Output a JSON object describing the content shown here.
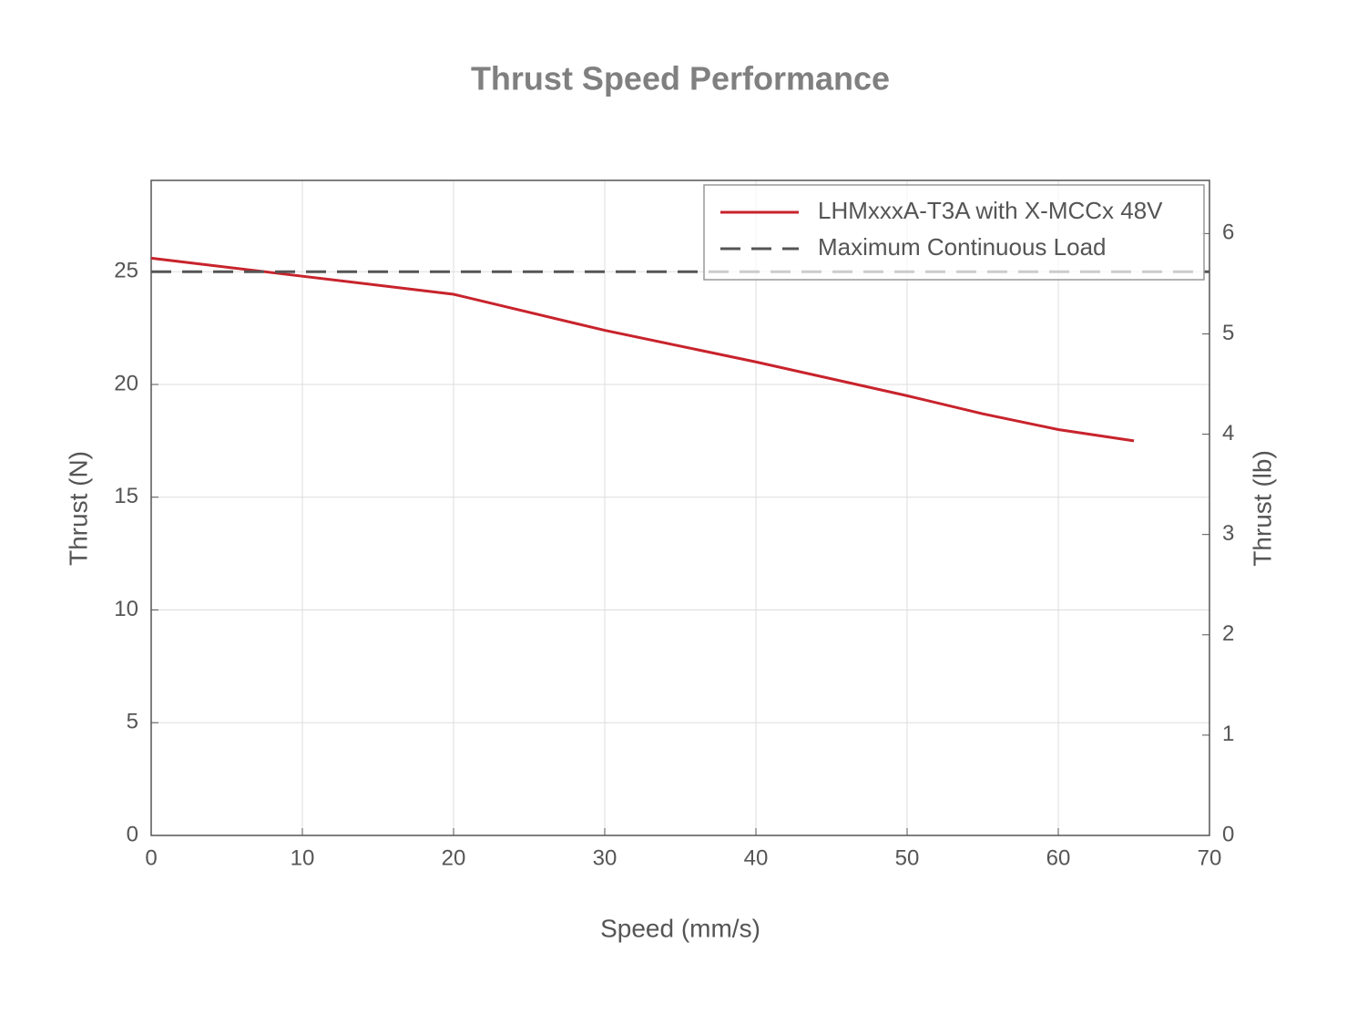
{
  "chart_data": {
    "type": "line",
    "title": "Thrust Speed Performance",
    "x_label": "Speed (mm/s)",
    "y_label": "Thrust (N)",
    "y2_label": "Thrust (lb)",
    "xlim": [
      0,
      70
    ],
    "xticks": [
      0,
      10,
      20,
      30,
      40,
      50,
      60,
      70
    ],
    "ylim": [
      0,
      29.05
    ],
    "yticks": [
      0,
      5,
      10,
      15,
      20,
      25
    ],
    "y2lim": [
      0,
      6.53
    ],
    "y2ticks": [
      0,
      1,
      2,
      3,
      4,
      5,
      6
    ],
    "grid": true,
    "legend": "upper right",
    "series": [
      {
        "name": "LHMxxxA-T3A with X-MCCx 48V",
        "color": "#c8232c",
        "dash": "solid",
        "x": [
          0,
          10,
          20,
          30,
          40,
          50,
          55,
          60,
          65
        ],
        "values": [
          25.6,
          24.8,
          24.0,
          22.4,
          21.0,
          19.5,
          18.7,
          18.0,
          17.5
        ]
      },
      {
        "name": "Maximum Continuous Load",
        "color": "#555555",
        "dash": "dashed",
        "x": [
          0,
          70
        ],
        "values": [
          25,
          25
        ]
      }
    ]
  }
}
